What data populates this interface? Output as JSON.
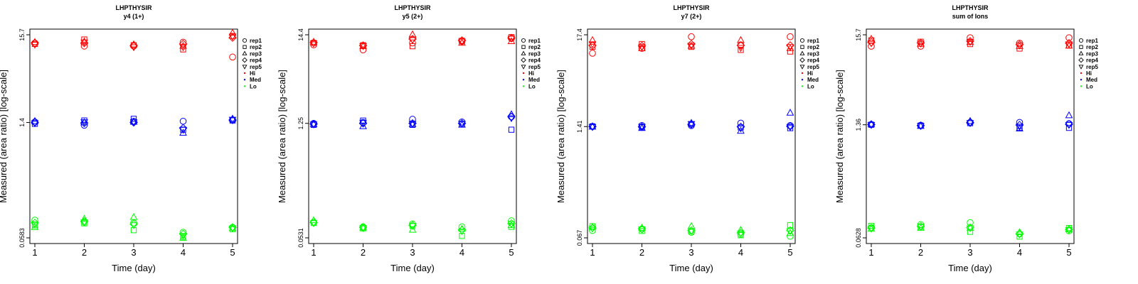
{
  "chart_data": [
    {
      "type": "scatter",
      "title": "LHPTHYSIR",
      "subtitle": "y4 (1+)",
      "xlabel": "Time (day)",
      "ylabel": "Measured (area ratio) [log-scale]",
      "log_y": true,
      "ylim": [
        0.0583,
        15.7
      ],
      "yticks": [
        "15.7",
        "1.4",
        "0.0583"
      ],
      "ytick_values": [
        15.7,
        1.4,
        0.0583
      ],
      "xticks": [
        1,
        2,
        3,
        4,
        5
      ],
      "xlim": [
        1,
        5
      ],
      "legend": {
        "position": "top-right"
      },
      "series": [
        {
          "level": "Hi",
          "rep": "rep1",
          "values": [
            12.5,
            11.5,
            11.5,
            12.8,
            8.5
          ]
        },
        {
          "level": "Hi",
          "rep": "rep2",
          "values": [
            12.2,
            13.8,
            11.8,
            10.5,
            15.2
          ]
        },
        {
          "level": "Hi",
          "rep": "rep3",
          "values": [
            12.8,
            13.0,
            12.0,
            11.5,
            16.5
          ]
        },
        {
          "level": "Hi",
          "rep": "rep4",
          "values": [
            12.5,
            12.5,
            11.6,
            12.2,
            14.5
          ]
        },
        {
          "level": "Hi",
          "rep": "rep5",
          "values": [
            12.0,
            12.8,
            11.2,
            11.2,
            15.0
          ]
        },
        {
          "level": "Med",
          "rep": "rep1",
          "values": [
            1.42,
            1.3,
            1.45,
            1.45,
            1.5
          ]
        },
        {
          "level": "Med",
          "rep": "rep2",
          "values": [
            1.35,
            1.48,
            1.55,
            1.15,
            1.48
          ]
        },
        {
          "level": "Med",
          "rep": "rep3",
          "values": [
            1.45,
            1.4,
            1.42,
            1.05,
            1.55
          ]
        },
        {
          "level": "Med",
          "rep": "rep4",
          "values": [
            1.4,
            1.38,
            1.4,
            1.2,
            1.5
          ]
        },
        {
          "level": "Med",
          "rep": "rep5",
          "values": [
            1.38,
            1.42,
            1.42,
            1.15,
            1.52
          ]
        },
        {
          "level": "Lo",
          "rep": "rep1",
          "values": [
            0.095,
            0.09,
            0.088,
            0.068,
            0.078
          ]
        },
        {
          "level": "Lo",
          "rep": "rep2",
          "values": [
            0.082,
            0.087,
            0.072,
            0.06,
            0.074
          ]
        },
        {
          "level": "Lo",
          "rep": "rep3",
          "values": [
            0.078,
            0.098,
            0.103,
            0.058,
            0.076
          ]
        },
        {
          "level": "Lo",
          "rep": "rep4",
          "values": [
            0.088,
            0.092,
            0.085,
            0.065,
            0.078
          ]
        },
        {
          "level": "Lo",
          "rep": "rep5",
          "values": [
            0.085,
            0.09,
            0.083,
            0.062,
            0.076
          ]
        }
      ]
    },
    {
      "type": "scatter",
      "title": "LHPTHYSIR",
      "subtitle": "y5 (2+)",
      "xlabel": "Time (day)",
      "ylabel": "Measured (area ratio) [log-scale]",
      "log_y": true,
      "ylim": [
        0.0531,
        14.4
      ],
      "yticks": [
        "14.4",
        "1.25",
        "0.0531"
      ],
      "ytick_values": [
        14.4,
        1.25,
        0.0531
      ],
      "xticks": [
        1,
        2,
        3,
        4,
        5
      ],
      "xlim": [
        1,
        5
      ],
      "legend": {
        "position": "top-right"
      },
      "series": [
        {
          "level": "Hi",
          "rep": "rep1",
          "values": [
            10.9,
            9.5,
            11.5,
            12.0,
            13.0
          ]
        },
        {
          "level": "Hi",
          "rep": "rep2",
          "values": [
            11.5,
            10.8,
            10.5,
            12.2,
            13.5
          ]
        },
        {
          "level": "Hi",
          "rep": "rep3",
          "values": [
            11.8,
            10.5,
            14.5,
            11.5,
            12.0
          ]
        },
        {
          "level": "Hi",
          "rep": "rep4",
          "values": [
            11.6,
            10.7,
            12.8,
            12.3,
            13.2
          ]
        },
        {
          "level": "Hi",
          "rep": "rep5",
          "values": [
            11.4,
            10.6,
            12.5,
            12.0,
            13.0
          ]
        },
        {
          "level": "Med",
          "rep": "rep1",
          "values": [
            1.25,
            1.28,
            1.4,
            1.3,
            1.5
          ]
        },
        {
          "level": "Med",
          "rep": "rep2",
          "values": [
            1.2,
            1.35,
            1.2,
            1.22,
            1.05
          ]
        },
        {
          "level": "Med",
          "rep": "rep3",
          "values": [
            1.22,
            1.15,
            1.22,
            1.2,
            1.6
          ]
        },
        {
          "level": "Med",
          "rep": "rep4",
          "values": [
            1.23,
            1.25,
            1.25,
            1.25,
            1.5
          ]
        },
        {
          "level": "Med",
          "rep": "rep5",
          "values": [
            1.22,
            1.28,
            1.24,
            1.24,
            1.45
          ]
        },
        {
          "level": "Lo",
          "rep": "rep1",
          "values": [
            0.082,
            0.072,
            0.078,
            0.072,
            0.085
          ]
        },
        {
          "level": "Lo",
          "rep": "rep2",
          "values": [
            0.08,
            0.069,
            0.074,
            0.056,
            0.072
          ]
        },
        {
          "level": "Lo",
          "rep": "rep3",
          "values": [
            0.086,
            0.07,
            0.066,
            0.068,
            0.075
          ]
        },
        {
          "level": "Lo",
          "rep": "rep4",
          "values": [
            0.081,
            0.071,
            0.075,
            0.066,
            0.079
          ]
        },
        {
          "level": "Lo",
          "rep": "rep5",
          "values": [
            0.08,
            0.07,
            0.074,
            0.064,
            0.078
          ]
        }
      ]
    },
    {
      "type": "scatter",
      "title": "LHPTHYSIR",
      "subtitle": "y7 (2+)",
      "xlabel": "Time (day)",
      "ylabel": "Measured (area ratio) [log-scale]",
      "log_y": true,
      "ylim": [
        0.067,
        17.4
      ],
      "yticks": [
        "17.4",
        "1.41",
        "0.067"
      ],
      "ytick_values": [
        17.4,
        1.41,
        0.067
      ],
      "xticks": [
        1,
        2,
        3,
        4,
        5
      ],
      "xlim": [
        1,
        5
      ],
      "legend": {
        "position": "top-right"
      },
      "series": [
        {
          "level": "Hi",
          "rep": "rep1",
          "values": [
            10.5,
            12.0,
            16.5,
            13.2,
            16.5
          ]
        },
        {
          "level": "Hi",
          "rep": "rep2",
          "values": [
            12.5,
            13.5,
            12.5,
            11.5,
            11.0
          ]
        },
        {
          "level": "Hi",
          "rep": "rep3",
          "values": [
            15.0,
            12.0,
            12.8,
            15.0,
            12.0
          ]
        },
        {
          "level": "Hi",
          "rep": "rep4",
          "values": [
            13.0,
            12.8,
            13.5,
            13.0,
            13.0
          ]
        },
        {
          "level": "Hi",
          "rep": "rep5",
          "values": [
            13.5,
            12.5,
            13.0,
            12.2,
            12.5
          ]
        },
        {
          "level": "Med",
          "rep": "rep1",
          "values": [
            1.41,
            1.45,
            1.45,
            1.55,
            1.45
          ]
        },
        {
          "level": "Med",
          "rep": "rep2",
          "values": [
            1.42,
            1.38,
            1.5,
            1.38,
            1.35
          ]
        },
        {
          "level": "Med",
          "rep": "rep3",
          "values": [
            1.4,
            1.35,
            1.55,
            1.25,
            2.05
          ]
        },
        {
          "level": "Med",
          "rep": "rep4",
          "values": [
            1.41,
            1.4,
            1.5,
            1.4,
            1.42
          ]
        },
        {
          "level": "Med",
          "rep": "rep5",
          "values": [
            1.4,
            1.41,
            1.52,
            1.35,
            1.4
          ]
        },
        {
          "level": "Lo",
          "rep": "rep1",
          "values": [
            0.082,
            0.085,
            0.078,
            0.074,
            0.07
          ]
        },
        {
          "level": "Lo",
          "rep": "rep2",
          "values": [
            0.092,
            0.081,
            0.08,
            0.072,
            0.095
          ]
        },
        {
          "level": "Lo",
          "rep": "rep3",
          "values": [
            0.09,
            0.088,
            0.092,
            0.083,
            0.076
          ]
        },
        {
          "level": "Lo",
          "rep": "rep4",
          "values": [
            0.088,
            0.086,
            0.082,
            0.077,
            0.082
          ]
        },
        {
          "level": "Lo",
          "rep": "rep5",
          "values": [
            0.087,
            0.085,
            0.081,
            0.076,
            0.081
          ]
        }
      ]
    },
    {
      "type": "scatter",
      "title": "LHPTHYSIR",
      "subtitle": "sum of Ions",
      "xlabel": "Time (day)",
      "ylabel": "Measured (area ratio) [log-scale]",
      "log_y": true,
      "ylim": [
        0.0628,
        15.7
      ],
      "yticks": [
        "15.7",
        "1.36",
        "0.0628"
      ],
      "ytick_values": [
        15.7,
        1.36,
        0.0628
      ],
      "xticks": [
        1,
        2,
        3,
        4,
        5
      ],
      "xlim": [
        1,
        5
      ],
      "legend": {
        "position": "top-right"
      },
      "series": [
        {
          "level": "Hi",
          "rep": "rep1",
          "values": [
            11.5,
            11.5,
            14.5,
            12.5,
            14.5
          ]
        },
        {
          "level": "Hi",
          "rep": "rep2",
          "values": [
            13.5,
            13.0,
            12.2,
            10.8,
            11.8
          ]
        },
        {
          "level": "Hi",
          "rep": "rep3",
          "values": [
            14.0,
            12.2,
            12.8,
            11.5,
            11.6
          ]
        },
        {
          "level": "Hi",
          "rep": "rep4",
          "values": [
            12.8,
            12.6,
            13.2,
            12.0,
            12.5
          ]
        },
        {
          "level": "Hi",
          "rep": "rep5",
          "values": [
            12.5,
            12.4,
            13.0,
            11.8,
            12.2
          ]
        },
        {
          "level": "Med",
          "rep": "rep1",
          "values": [
            1.37,
            1.34,
            1.45,
            1.45,
            1.4
          ]
        },
        {
          "level": "Med",
          "rep": "rep2",
          "values": [
            1.36,
            1.33,
            1.42,
            1.25,
            1.25
          ]
        },
        {
          "level": "Med",
          "rep": "rep3",
          "values": [
            1.38,
            1.31,
            1.5,
            1.22,
            1.75
          ]
        },
        {
          "level": "Med",
          "rep": "rep4",
          "values": [
            1.37,
            1.33,
            1.44,
            1.35,
            1.38
          ]
        },
        {
          "level": "Med",
          "rep": "rep5",
          "values": [
            1.36,
            1.32,
            1.43,
            1.3,
            1.36
          ]
        },
        {
          "level": "Lo",
          "rep": "rep1",
          "values": [
            0.083,
            0.09,
            0.095,
            0.07,
            0.076
          ]
        },
        {
          "level": "Lo",
          "rep": "rep2",
          "values": [
            0.087,
            0.085,
            0.074,
            0.065,
            0.082
          ]
        },
        {
          "level": "Lo",
          "rep": "rep3",
          "values": [
            0.08,
            0.082,
            0.082,
            0.073,
            0.079
          ]
        },
        {
          "level": "Lo",
          "rep": "rep4",
          "values": [
            0.082,
            0.086,
            0.083,
            0.07,
            0.079
          ]
        },
        {
          "level": "Lo",
          "rep": "rep5",
          "values": [
            0.081,
            0.085,
            0.082,
            0.069,
            0.078
          ]
        }
      ]
    }
  ],
  "legend": {
    "reps": [
      {
        "label": "rep1",
        "symbol": "circle"
      },
      {
        "label": "rep2",
        "symbol": "square"
      },
      {
        "label": "rep3",
        "symbol": "triangle-up"
      },
      {
        "label": "rep4",
        "symbol": "diamond"
      },
      {
        "label": "rep5",
        "symbol": "triangle-down"
      }
    ],
    "levels": [
      {
        "label": "Hi",
        "color": "#ff0000"
      },
      {
        "label": "Med",
        "color": "#0000ff"
      },
      {
        "label": "Lo",
        "color": "#00ff00"
      }
    ]
  },
  "colors": {
    "Hi": "#ff0000",
    "Med": "#0000ff",
    "Lo": "#00ff00"
  }
}
